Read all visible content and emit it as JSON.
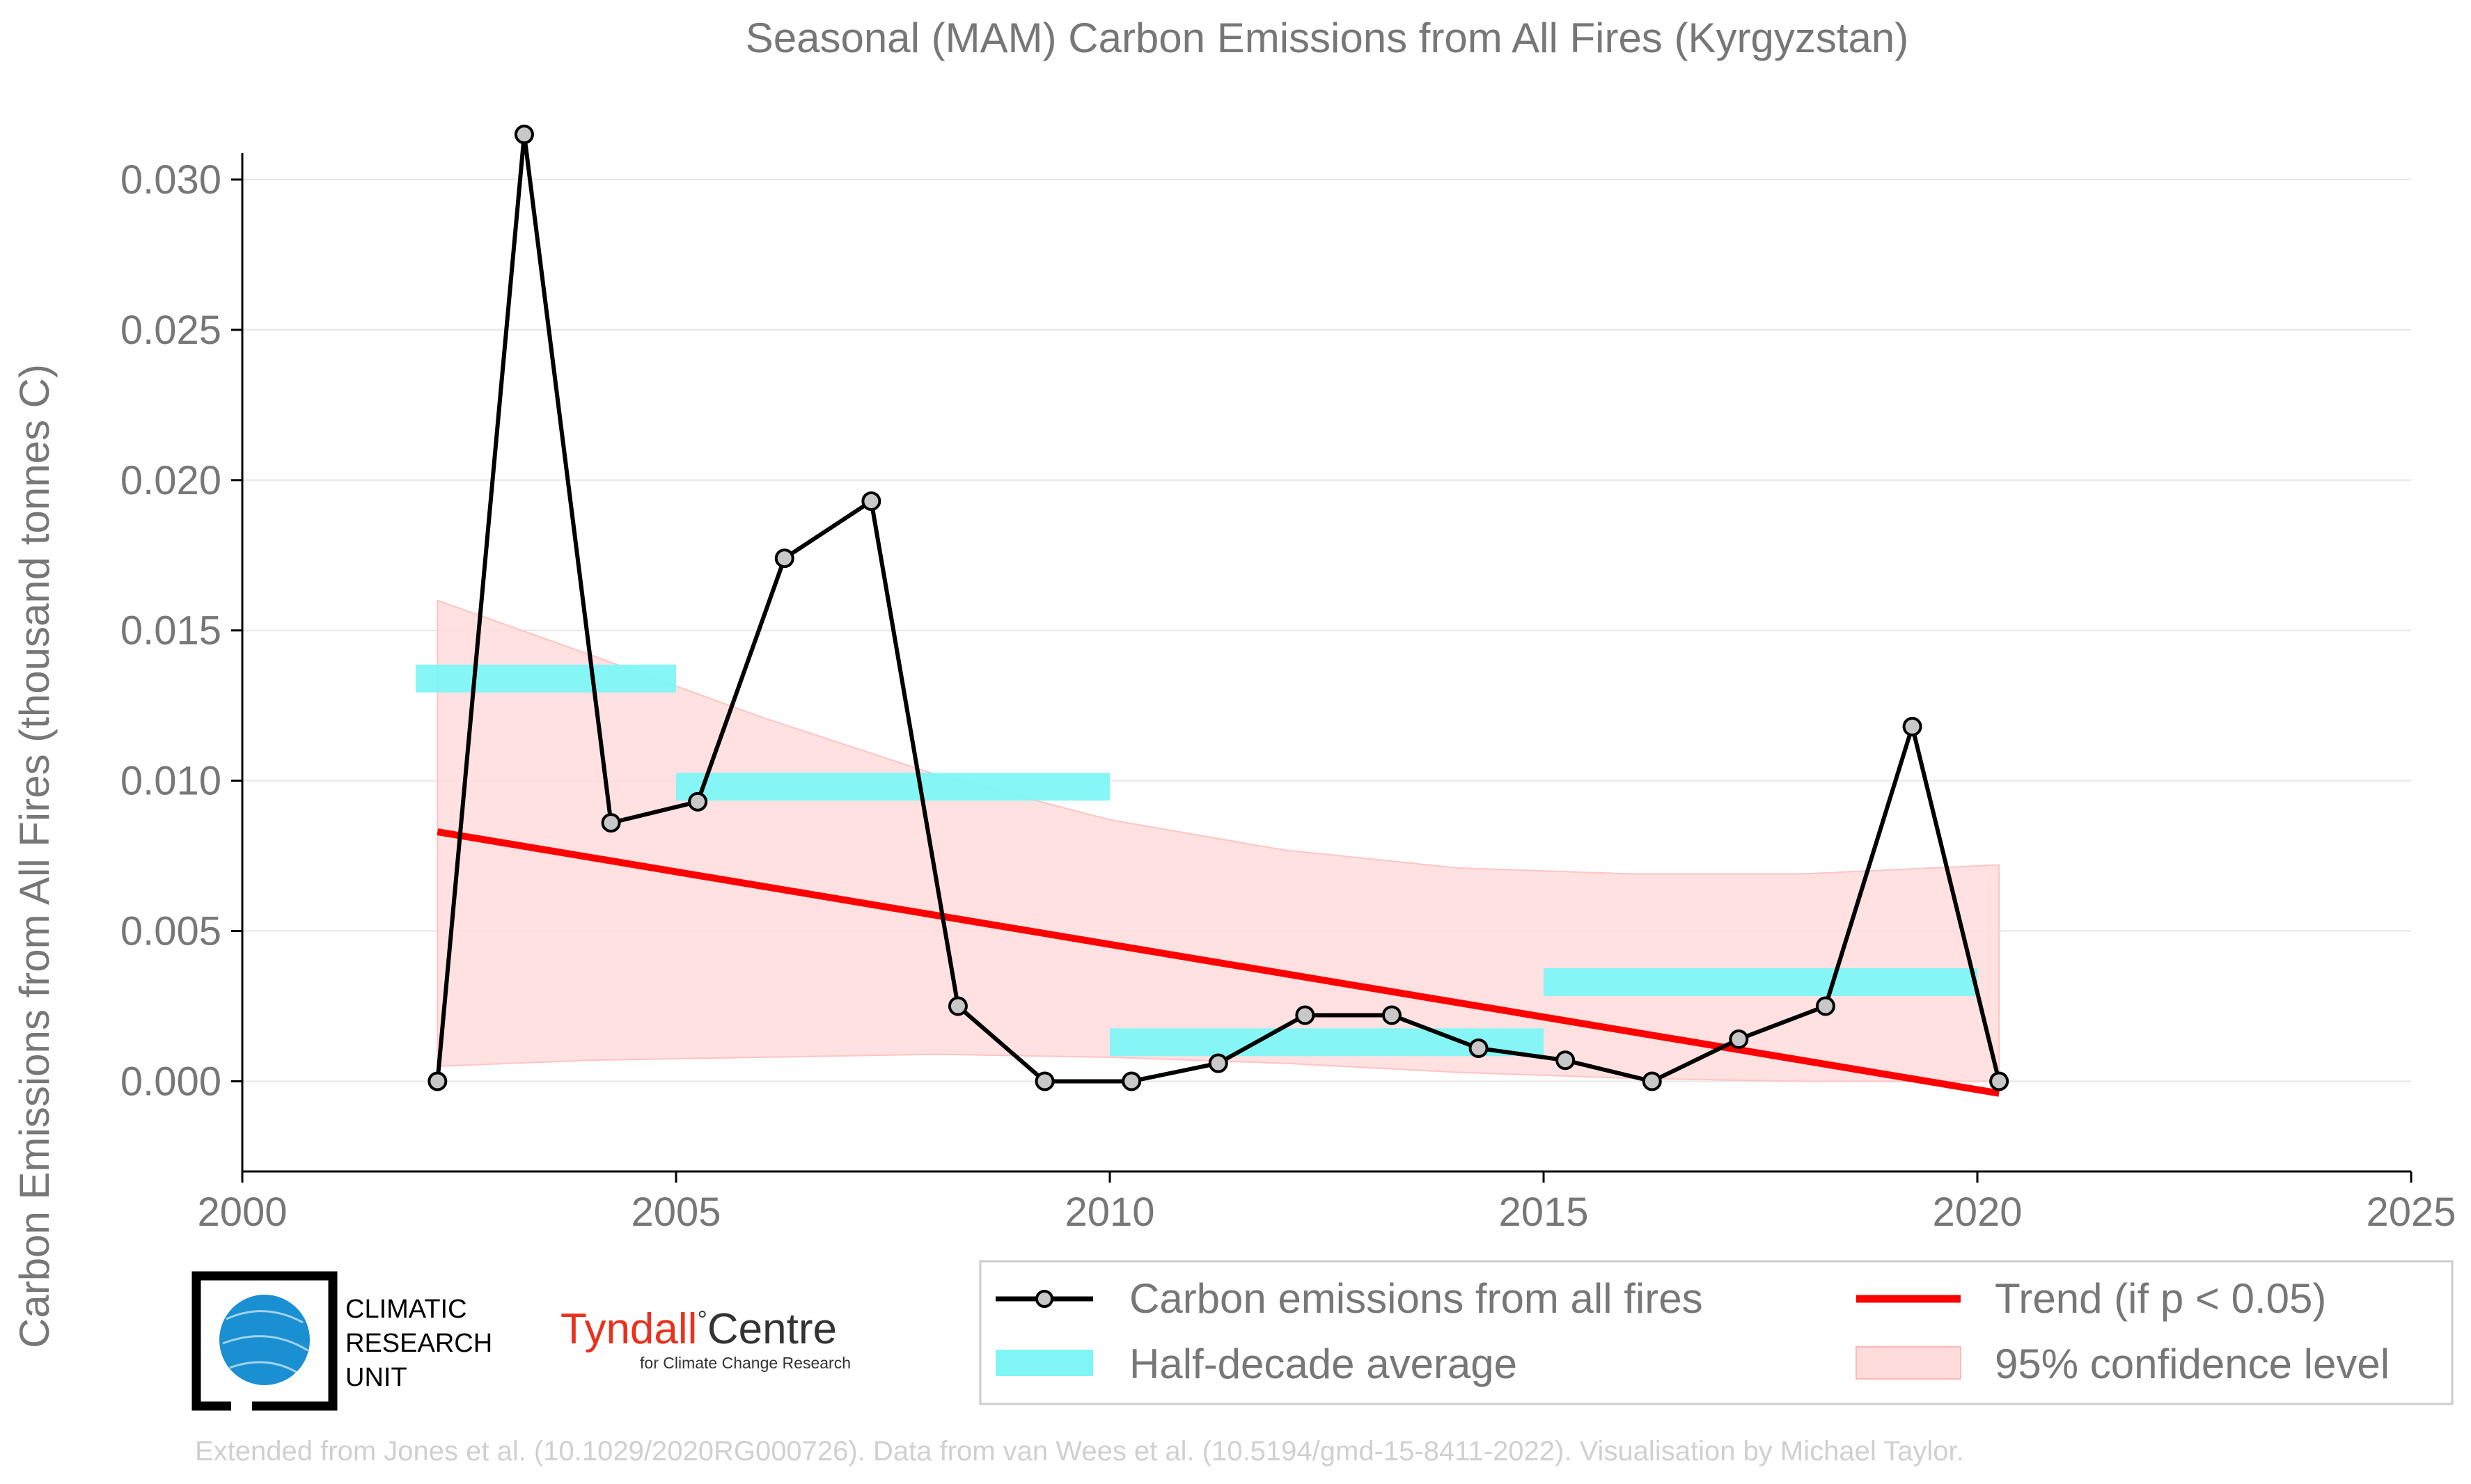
{
  "chart_data": {
    "type": "line",
    "title": "Seasonal (MAM) Carbon Emissions from All Fires (Kyrgyzstan)",
    "xlabel": "",
    "ylabel": "Carbon Emissions from All Fires (thousand tonnes C)",
    "xlim": [
      2000,
      2025
    ],
    "ylim": [
      -0.003,
      0.0325
    ],
    "xticks": [
      2000,
      2005,
      2010,
      2015,
      2020,
      2025
    ],
    "yticks": [
      0.0,
      0.005,
      0.01,
      0.015,
      0.02,
      0.025,
      0.03
    ],
    "ytick_labels": [
      "0.000",
      "0.005",
      "0.010",
      "0.015",
      "0.020",
      "0.025",
      "0.030"
    ],
    "grid": "horizontal",
    "legend_placement": "bottom",
    "series": [
      {
        "name": "Carbon emissions from all fires",
        "color": "#000000",
        "marker_color": "#c8c8c8",
        "x": [
          2002.25,
          2003.25,
          2004.25,
          2005.25,
          2006.25,
          2007.25,
          2008.25,
          2009.25,
          2010.25,
          2011.25,
          2012.25,
          2013.25,
          2014.25,
          2015.25,
          2016.25,
          2017.25,
          2018.25,
          2019.25,
          2020.25
        ],
        "y": [
          0.0,
          0.0315,
          0.0086,
          0.0093,
          0.0174,
          0.0193,
          0.0025,
          0.0,
          0.0,
          0.0006,
          0.0022,
          0.0022,
          0.0011,
          0.0007,
          0.0,
          0.0014,
          0.0025,
          0.0118,
          0.0
        ]
      },
      {
        "name": "Half-decade average",
        "color": "#7ff5f5",
        "segments": [
          {
            "x0": 2002.0,
            "x1": 2005.0,
            "y": 0.0134
          },
          {
            "x0": 2005.0,
            "x1": 2010.0,
            "y": 0.0098
          },
          {
            "x0": 2010.0,
            "x1": 2015.0,
            "y": 0.0013
          },
          {
            "x0": 2015.0,
            "x1": 2020.0,
            "y": 0.0033
          }
        ]
      },
      {
        "name": "Trend (if p < 0.05)",
        "color": "#ff0000",
        "x": [
          2002.25,
          2020.25
        ],
        "y": [
          0.0083,
          -0.0004
        ]
      },
      {
        "name": "95% confidence level",
        "color": "#ffdcdc",
        "x": [
          2002.25,
          2004.0,
          2006.0,
          2008.0,
          2010.0,
          2012.0,
          2014.0,
          2016.0,
          2018.0,
          2020.25
        ],
        "upper": [
          0.016,
          0.0142,
          0.0121,
          0.0102,
          0.0087,
          0.0077,
          0.0071,
          0.0069,
          0.0069,
          0.0072
        ],
        "lower": [
          0.0005,
          0.0007,
          0.0008,
          0.0009,
          0.0008,
          0.0006,
          0.0003,
          0.0001,
          0.0,
          0.0
        ]
      }
    ]
  },
  "logos": {
    "cru": {
      "line1": "CLIMATIC",
      "line2": "RESEARCH",
      "line3": "UNIT",
      "globe_color": "#1a8fd1"
    },
    "tyndall": {
      "main": "Tyndall",
      "degree": "°",
      "centre": "Centre",
      "sub": "for Climate Change Research"
    }
  },
  "credit": "Extended from Jones et al. (10.1029/2020RG000726). Data from van Wees et al. (10.5194/gmd-15-8411-2022). Visualisation by Michael Taylor."
}
